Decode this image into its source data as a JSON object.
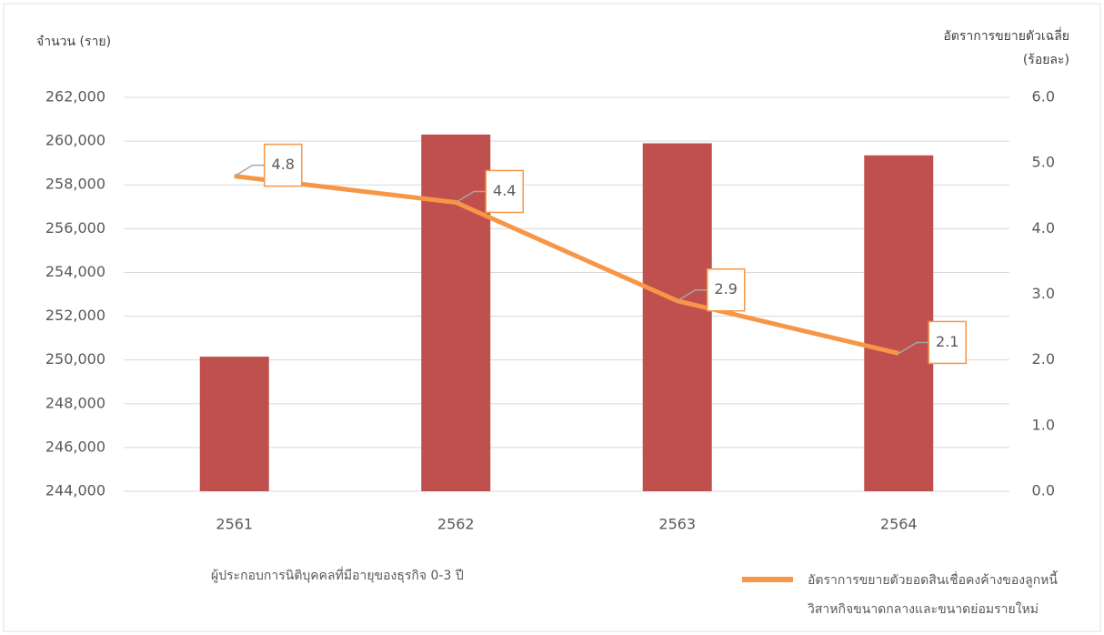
{
  "chart_data": {
    "type": "bar-line",
    "y_label": "จำนวน (ราย)",
    "y2_label": "อัตราการขยายตัวเฉลี่ย (ร้อยละ)",
    "categories": [
      "2561",
      "2562",
      "2563",
      "2564"
    ],
    "series": [
      {
        "name": "ผู้ประกอบการนิติบุคคลที่มีอายุของธุรกิจ 0-3 ปี",
        "type": "bar",
        "color": "#c0504d",
        "values": [
          250150,
          260300,
          259900,
          259350
        ]
      },
      {
        "name": "อัตราการขยายตัวยอดสินเชื่อคงค้างของลูกหนี้ วิสาหกิจขนาดกลางและขนาดย่อมรายใหม่",
        "type": "line",
        "axis": "y2",
        "color": "#f79646",
        "values": [
          4.8,
          4.4,
          2.9,
          2.1
        ],
        "value_labels": [
          "4.8",
          "4.4",
          "2.9",
          "2.1"
        ]
      }
    ],
    "ylim": [
      244000,
      262000
    ],
    "yticks": [
      {
        "value": 244000,
        "label": "244,000"
      },
      {
        "value": 246000,
        "label": "246,000"
      },
      {
        "value": 248000,
        "label": "248,000"
      },
      {
        "value": 250000,
        "label": "250,000"
      },
      {
        "value": 252000,
        "label": "252,000"
      },
      {
        "value": 254000,
        "label": "254,000"
      },
      {
        "value": 256000,
        "label": "256,000"
      },
      {
        "value": 258000,
        "label": "258,000"
      },
      {
        "value": 260000,
        "label": "260,000"
      },
      {
        "value": 262000,
        "label": "262,000"
      }
    ],
    "y2lim": [
      0,
      6
    ],
    "y2ticks": [
      {
        "value": 0,
        "label": "0.0"
      },
      {
        "value": 1,
        "label": "1.0"
      },
      {
        "value": 2,
        "label": "2.0"
      },
      {
        "value": 3,
        "label": "3.0"
      },
      {
        "value": 4,
        "label": "4.0"
      },
      {
        "value": 5,
        "label": "5.0"
      },
      {
        "value": 6,
        "label": "6.0"
      }
    ],
    "grid": true
  }
}
